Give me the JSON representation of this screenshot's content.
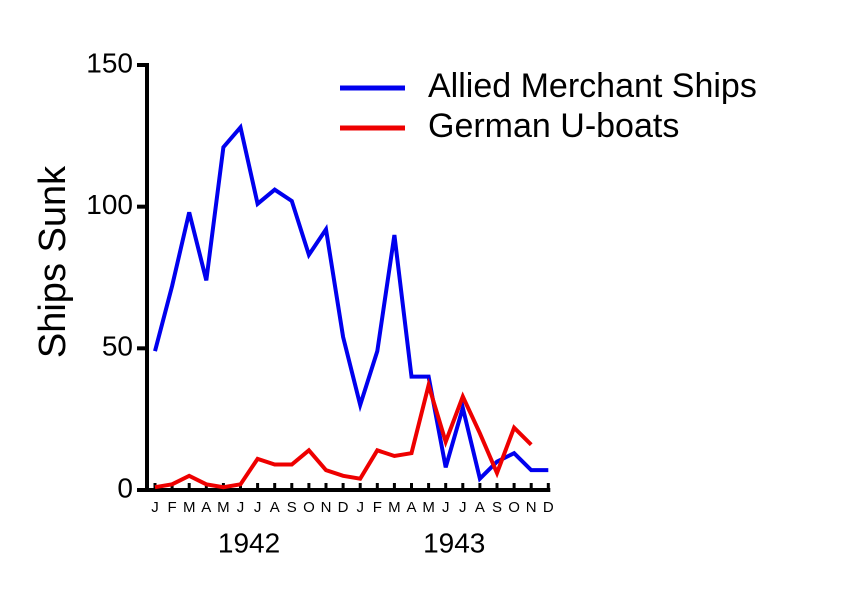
{
  "chart_data": {
    "type": "line",
    "ylabel": "Ships Sunk",
    "categories": [
      "J",
      "F",
      "M",
      "A",
      "M",
      "J",
      "J",
      "A",
      "S",
      "O",
      "N",
      "D",
      "J",
      "F",
      "M",
      "A",
      "M",
      "J",
      "J",
      "A",
      "S",
      "O",
      "N",
      "D"
    ],
    "year_labels": [
      "1942",
      "1943"
    ],
    "series": [
      {
        "name": "Allied Merchant Ships",
        "color": "#0000ee",
        "values": [
          49,
          72,
          98,
          74,
          121,
          128,
          101,
          106,
          102,
          83,
          92,
          54,
          30,
          49,
          90,
          40,
          40,
          8,
          29,
          4,
          10,
          13,
          7,
          7
        ]
      },
      {
        "name": "German U-boats",
        "color": "#ee0000",
        "values": [
          1,
          2,
          5,
          2,
          1,
          2,
          11,
          9,
          9,
          14,
          7,
          5,
          4,
          14,
          12,
          13,
          37,
          17,
          33,
          20,
          6,
          22,
          16,
          null
        ]
      }
    ],
    "ylim": [
      0,
      150
    ],
    "yticks": [
      0,
      50,
      100,
      150
    ],
    "legend": "upper right",
    "grid": false
  }
}
